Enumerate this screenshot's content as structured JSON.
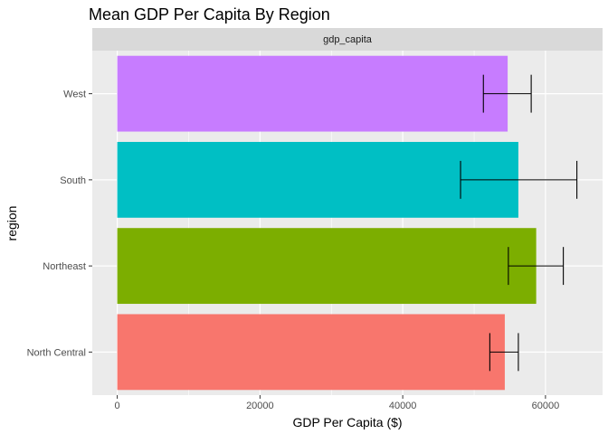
{
  "chart_data": {
    "type": "bar",
    "orientation": "horizontal",
    "title": "Mean GDP Per Capita By Region",
    "facet_label": "gdp_capita",
    "xlabel": "GDP Per Capita ($)",
    "ylabel": "region",
    "xlim": [
      -3500,
      68000
    ],
    "x_ticks": [
      0,
      20000,
      40000,
      60000
    ],
    "x_tick_labels": [
      "0",
      "20000",
      "40000",
      "60000"
    ],
    "grid": true,
    "legend": "none",
    "categories": [
      "North Central",
      "Northeast",
      "South",
      "West"
    ],
    "values": [
      54300,
      58700,
      56200,
      54700
    ],
    "error_low": [
      52200,
      54800,
      48100,
      51300
    ],
    "error_high": [
      56200,
      62500,
      64400,
      58000
    ],
    "colors": [
      "#F8766D",
      "#7CAE00",
      "#00BFC4",
      "#C77CFF"
    ]
  }
}
